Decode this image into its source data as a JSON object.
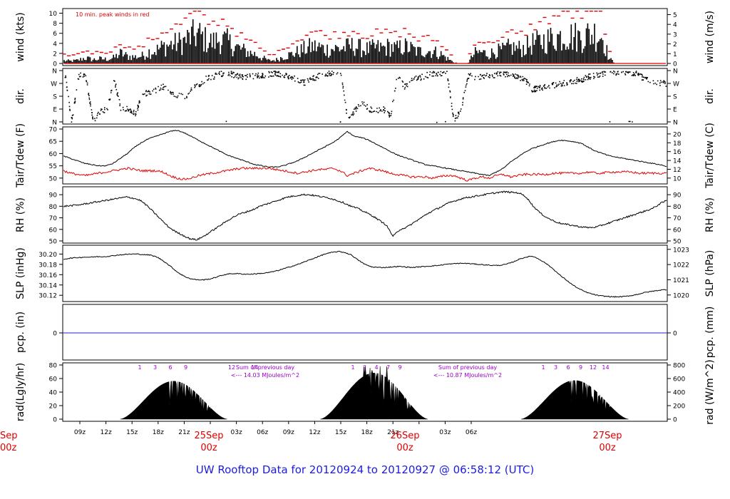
{
  "footer": "UW Rooftop Data for 20120924  to  20120927 @ 06:58:12  (UTC)",
  "colors": {
    "series": "#000000",
    "dewpoint": "#e00000",
    "peak": "#e00000",
    "precip": "#2222cc",
    "annotation": "#9900cc",
    "date": "#e00000"
  },
  "time_axis": {
    "hour_ticks": [
      "09z",
      "12z",
      "15z",
      "18z",
      "21z",
      "00z",
      "03z",
      "06z",
      "09z",
      "12z",
      "15z",
      "18z",
      "21z",
      "00z",
      "03z",
      "06z"
    ],
    "hour_labels": [
      "09z",
      "12z",
      "15z",
      "18z",
      "21z",
      "03z",
      "06z",
      "09z",
      "12z",
      "15z",
      "18z",
      "21z",
      "03z",
      "06z"
    ],
    "date_labels": [
      {
        "line1": "25Sep",
        "line2": "00z"
      },
      {
        "line1": "26Sep",
        "line2": "00z"
      },
      {
        "line1": "27Sep",
        "line2": "00z"
      }
    ],
    "cut_date": {
      "line1": "Sep",
      "line2": "00z"
    }
  },
  "chart_data": [
    {
      "id": "wind",
      "type": "bar",
      "ylabel_left": "wind (kts)",
      "ylabel_right": "wind (m/s)",
      "yticks_left": [
        "0",
        "2",
        "4",
        "6",
        "8",
        "10"
      ],
      "yticks_right": [
        "0",
        "1",
        "2",
        "3",
        "4",
        "5"
      ],
      "ylim": [
        0,
        10.5
      ],
      "annotation": "10 min. peak winds in red",
      "levels": [
        0.6,
        0.5,
        0.7,
        1.2,
        0.8,
        1.0,
        0.9,
        1.2,
        2.2,
        1.5,
        1.4,
        1.6,
        2.5,
        2.8,
        3.6,
        4.0,
        4.3,
        4.8,
        5.8,
        6.2,
        5.0,
        4.5,
        5.2,
        4.7,
        3.8,
        3.0,
        2.4,
        2.0,
        1.2,
        0.6,
        0.8,
        1.5,
        1.9,
        2.5,
        3.1,
        3.6,
        3.5,
        3.0,
        3.2,
        3.2,
        3.5,
        3.8,
        3.2,
        3.0,
        3.4,
        3.3,
        3.6,
        3.1,
        3.7,
        3.2,
        2.5,
        2.8,
        2.6,
        2.2,
        1.2,
        0.3,
        0.0,
        0.0,
        2.2,
        2.4,
        2.0,
        2.6,
        2.8,
        3.5,
        3.2,
        3.3,
        4.2,
        4.5,
        5.0,
        5.4,
        5.8,
        6.0,
        5.8,
        5.6,
        6.2,
        6.4,
        6.0,
        1.0,
        0.0,
        0.0,
        0.0,
        0.0,
        0.0,
        0.0,
        0.0,
        0.0
      ]
    },
    {
      "id": "dir",
      "type": "scatter",
      "ylabel_left": "dir.",
      "ylabel_right": "dir.",
      "yticks_left": [
        "N",
        "E",
        "S",
        "W",
        "N"
      ],
      "yticks_right": [
        "N",
        "E",
        "S",
        "W",
        "N"
      ],
      "levels": [
        355,
        10,
        330,
        320,
        5,
        80,
        90,
        300,
        85,
        95,
        60,
        200,
        210,
        230,
        250,
        215,
        190,
        170,
        240,
        260,
        310,
        320,
        340,
        350,
        330,
        315,
        320,
        325,
        330,
        340,
        345,
        330,
        320,
        290,
        280,
        305,
        330,
        340,
        345,
        350,
        20,
        80,
        150,
        90,
        85,
        95,
        40,
        320,
        250,
        300,
        310,
        330,
        340,
        345,
        350,
        10,
        90,
        330,
        320,
        320,
        330,
        335,
        340,
        330,
        320,
        300,
        230,
        240,
        250,
        260,
        270,
        280,
        290,
        300,
        320,
        330,
        340,
        345,
        350,
        355,
        350,
        340,
        300,
        290,
        280,
        270
      ]
    },
    {
      "id": "temp",
      "type": "line",
      "ylabel_left": "Tair/Tdew (F)",
      "ylabel_right": "Tair/Tdew (C)",
      "yticks_left": [
        "50",
        "55",
        "60",
        "65",
        "70"
      ],
      "yticks_right": [
        "10",
        "12",
        "14",
        "16",
        "18",
        "20"
      ],
      "ylim": [
        48.5,
        70
      ],
      "series": [
        {
          "name": "Tair",
          "values": [
            59,
            58,
            57,
            56,
            55.5,
            55,
            55,
            56,
            58,
            60,
            62.5,
            64.5,
            66,
            67,
            68,
            69,
            69.5,
            68.5,
            67,
            65.5,
            64,
            62.5,
            61,
            59.5,
            58.5,
            57.5,
            56.5,
            55.5,
            55,
            54.5,
            54.5,
            55,
            56,
            57,
            58.5,
            60,
            61.5,
            63,
            64.5,
            66.5,
            69,
            67,
            66.5,
            65.5,
            64,
            62.5,
            61,
            59.5,
            58.5,
            57.5,
            56.5,
            55.5,
            55,
            54.5,
            54,
            53.5,
            53,
            52.5,
            52,
            51.5,
            51,
            52.5,
            54,
            56.5,
            58.5,
            60.5,
            62,
            63,
            64,
            64.8,
            65.5,
            65.2,
            64.8,
            64.2,
            62.5,
            61,
            60,
            59,
            58.5,
            58,
            57.5,
            57,
            56.5,
            56,
            55.5,
            54.8
          ]
        },
        {
          "name": "Tdew",
          "values": [
            53,
            52,
            51.5,
            51,
            51.5,
            52,
            52.5,
            53,
            53.5,
            54,
            53.5,
            53,
            53,
            53,
            52.5,
            51,
            50,
            49.5,
            50,
            51,
            51.5,
            52,
            52.5,
            53,
            53.5,
            54,
            54,
            54,
            54,
            54,
            53.5,
            53,
            52.5,
            52,
            52.5,
            53,
            53.5,
            53.5,
            54,
            53,
            51,
            52,
            53,
            54,
            53.5,
            53,
            52,
            51.5,
            51,
            50.5,
            50.5,
            50.5,
            50,
            50.5,
            51,
            51,
            50,
            49,
            50,
            50.5,
            50,
            51,
            51.5,
            50.5,
            51,
            51.5,
            51.5,
            51.5,
            51.5,
            52,
            52,
            52,
            52,
            52,
            52.5,
            52,
            52,
            52.5,
            52.5,
            52.5,
            52.5,
            52,
            52,
            52,
            52,
            52
          ]
        }
      ]
    },
    {
      "id": "rh",
      "type": "line",
      "ylabel_left": "RH (%)",
      "ylabel_right": "RH (%)",
      "yticks_left": [
        "50",
        "60",
        "70",
        "80",
        "90"
      ],
      "yticks_right": [
        "50",
        "60",
        "70",
        "80",
        "90"
      ],
      "ylim": [
        50,
        95
      ],
      "series": [
        {
          "name": "RH",
          "values": [
            80,
            80.5,
            81,
            82,
            83,
            84,
            85,
            86,
            87,
            88,
            87,
            85,
            80,
            74,
            68,
            62,
            58,
            55,
            52,
            51,
            54,
            58,
            62,
            66,
            70,
            73,
            75,
            77,
            80,
            82,
            84,
            86,
            88,
            89,
            90,
            90,
            89,
            88,
            87,
            85,
            83,
            80,
            78,
            75,
            72,
            68,
            64,
            54,
            60,
            62,
            66,
            70,
            74,
            77,
            80,
            83,
            85,
            87,
            88,
            89,
            90,
            91,
            92,
            92.5,
            92,
            91.5,
            88,
            80,
            74,
            70,
            67,
            65,
            64,
            63,
            62,
            61.5,
            62,
            64,
            66,
            68,
            70,
            72,
            74,
            76,
            78,
            82,
            85
          ]
        }
      ]
    },
    {
      "id": "slp",
      "type": "line",
      "ylabel_left": "SLP (inHg)",
      "ylabel_right": "SLP (hPa)",
      "yticks_left": [
        "30.12",
        "30.14",
        "30.16",
        "30.18",
        "30.20"
      ],
      "yticks_right": [
        "1020",
        "1021",
        "1022",
        "1023"
      ],
      "ylim": [
        30.112,
        30.213
      ],
      "series": [
        {
          "name": "SLP",
          "values": [
            30.19,
            30.192,
            30.193,
            30.194,
            30.194,
            30.195,
            30.195,
            30.196,
            30.198,
            30.199,
            30.2,
            30.2,
            30.199,
            30.198,
            30.194,
            30.186,
            30.176,
            30.165,
            30.157,
            30.152,
            30.15,
            30.15,
            30.152,
            30.156,
            30.16,
            30.162,
            30.162,
            30.161,
            30.161,
            30.162,
            30.163,
            30.165,
            30.168,
            30.172,
            30.176,
            30.18,
            30.185,
            30.19,
            30.195,
            30.2,
            30.203,
            30.205,
            30.203,
            30.198,
            30.188,
            30.18,
            30.175,
            30.174,
            30.174,
            30.175,
            30.176,
            30.175,
            30.174,
            30.175,
            30.176,
            30.177,
            30.178,
            30.18,
            30.181,
            30.182,
            30.182,
            30.181,
            30.18,
            30.179,
            30.178,
            30.178,
            30.18,
            30.184,
            30.19,
            30.194,
            30.196,
            30.19,
            30.182,
            30.172,
            30.16,
            30.15,
            30.14,
            30.132,
            30.126,
            30.122,
            30.119,
            30.118,
            30.117,
            30.117,
            30.118,
            30.12,
            30.123,
            30.126,
            30.128,
            30.13,
            30.131
          ]
        }
      ]
    },
    {
      "id": "pcp",
      "type": "line",
      "ylabel_left": "pcp. (in)",
      "ylabel_right": "pcp. (mm)",
      "yticks_left": [
        "0"
      ],
      "yticks_right": [
        "0"
      ],
      "series": [
        {
          "name": "pcp",
          "values": [
            0
          ]
        }
      ]
    },
    {
      "id": "rad",
      "type": "area",
      "ylabel_left": "rad(Lgly/hr)",
      "ylabel_right": "rad (W/m^2)",
      "yticks_left": [
        "0",
        "20",
        "40",
        "60",
        "80"
      ],
      "yticks_right": [
        "0",
        "200",
        "400",
        "600",
        "800"
      ],
      "ylim": [
        0,
        80
      ],
      "days": [
        {
          "peak": 56,
          "labels": [
            "1",
            "3",
            "6",
            "9",
            "12",
            "14"
          ],
          "sum_line1": "Sum of previous day",
          "sum_line2": "<--- 14.03 MJoules/m^2"
        },
        {
          "peak": 68,
          "labels": [
            "1",
            "2",
            "4",
            "7",
            "9"
          ],
          "sum_line1": "Sum of previous day",
          "sum_line2": "<--- 10.87 MJoules/m^2"
        },
        {
          "peak": 57,
          "labels": [
            "1",
            "3",
            "6",
            "9",
            "12",
            "14"
          ],
          "sum_line1": "",
          "sum_line2": ""
        }
      ]
    }
  ]
}
